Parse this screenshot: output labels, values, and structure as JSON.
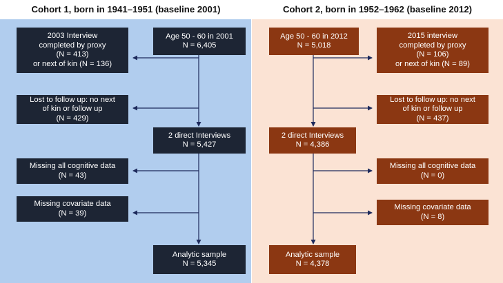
{
  "cohort1": {
    "title": "Cohort 1, born in 1941–1951 (baseline 2001)",
    "boxes": {
      "start": [
        "Age 50 - 60 in 2001",
        "N = 6,405"
      ],
      "proxy": [
        "2003 Interview",
        "completed by proxy",
        "(N = 413)",
        "or next of kin (N = 136)"
      ],
      "lost": [
        "Lost to follow up: no next",
        "of kin or follow up",
        "(N = 429)"
      ],
      "direct": [
        "2 direct Interviews",
        "N = 5,427"
      ],
      "cognitive": [
        "Missing all cognitive data",
        "(N = 43)"
      ],
      "covariate": [
        "Missing covariate data",
        "(N = 39)"
      ],
      "analytic": [
        "Analytic sample",
        "N = 5,345"
      ]
    }
  },
  "cohort2": {
    "title": "Cohort 2, born in 1952–1962 (baseline 2012)",
    "boxes": {
      "start": [
        "Age 50 - 60 in 2012",
        "N = 5,018"
      ],
      "proxy": [
        "2015 interview",
        "completed by proxy",
        "(N = 106)",
        "or next of kin (N = 89)"
      ],
      "lost": [
        "Lost to follow up: no next",
        "of kin or follow up",
        "(N = 437)"
      ],
      "direct": [
        "2 direct Interviews",
        "N = 4,386"
      ],
      "cognitive": [
        "Missing all cognitive data",
        "(N = 0)"
      ],
      "covariate": [
        "Missing covariate data",
        "(N = 8)"
      ],
      "analytic": [
        "Analytic sample",
        "N = 4,378"
      ]
    }
  },
  "colors": {
    "left_panel": "#b1cdee",
    "right_panel": "#fbe3d4",
    "left_box": "#1d2534",
    "right_box": "#8b3712",
    "arrow": "#1d2a5c"
  }
}
